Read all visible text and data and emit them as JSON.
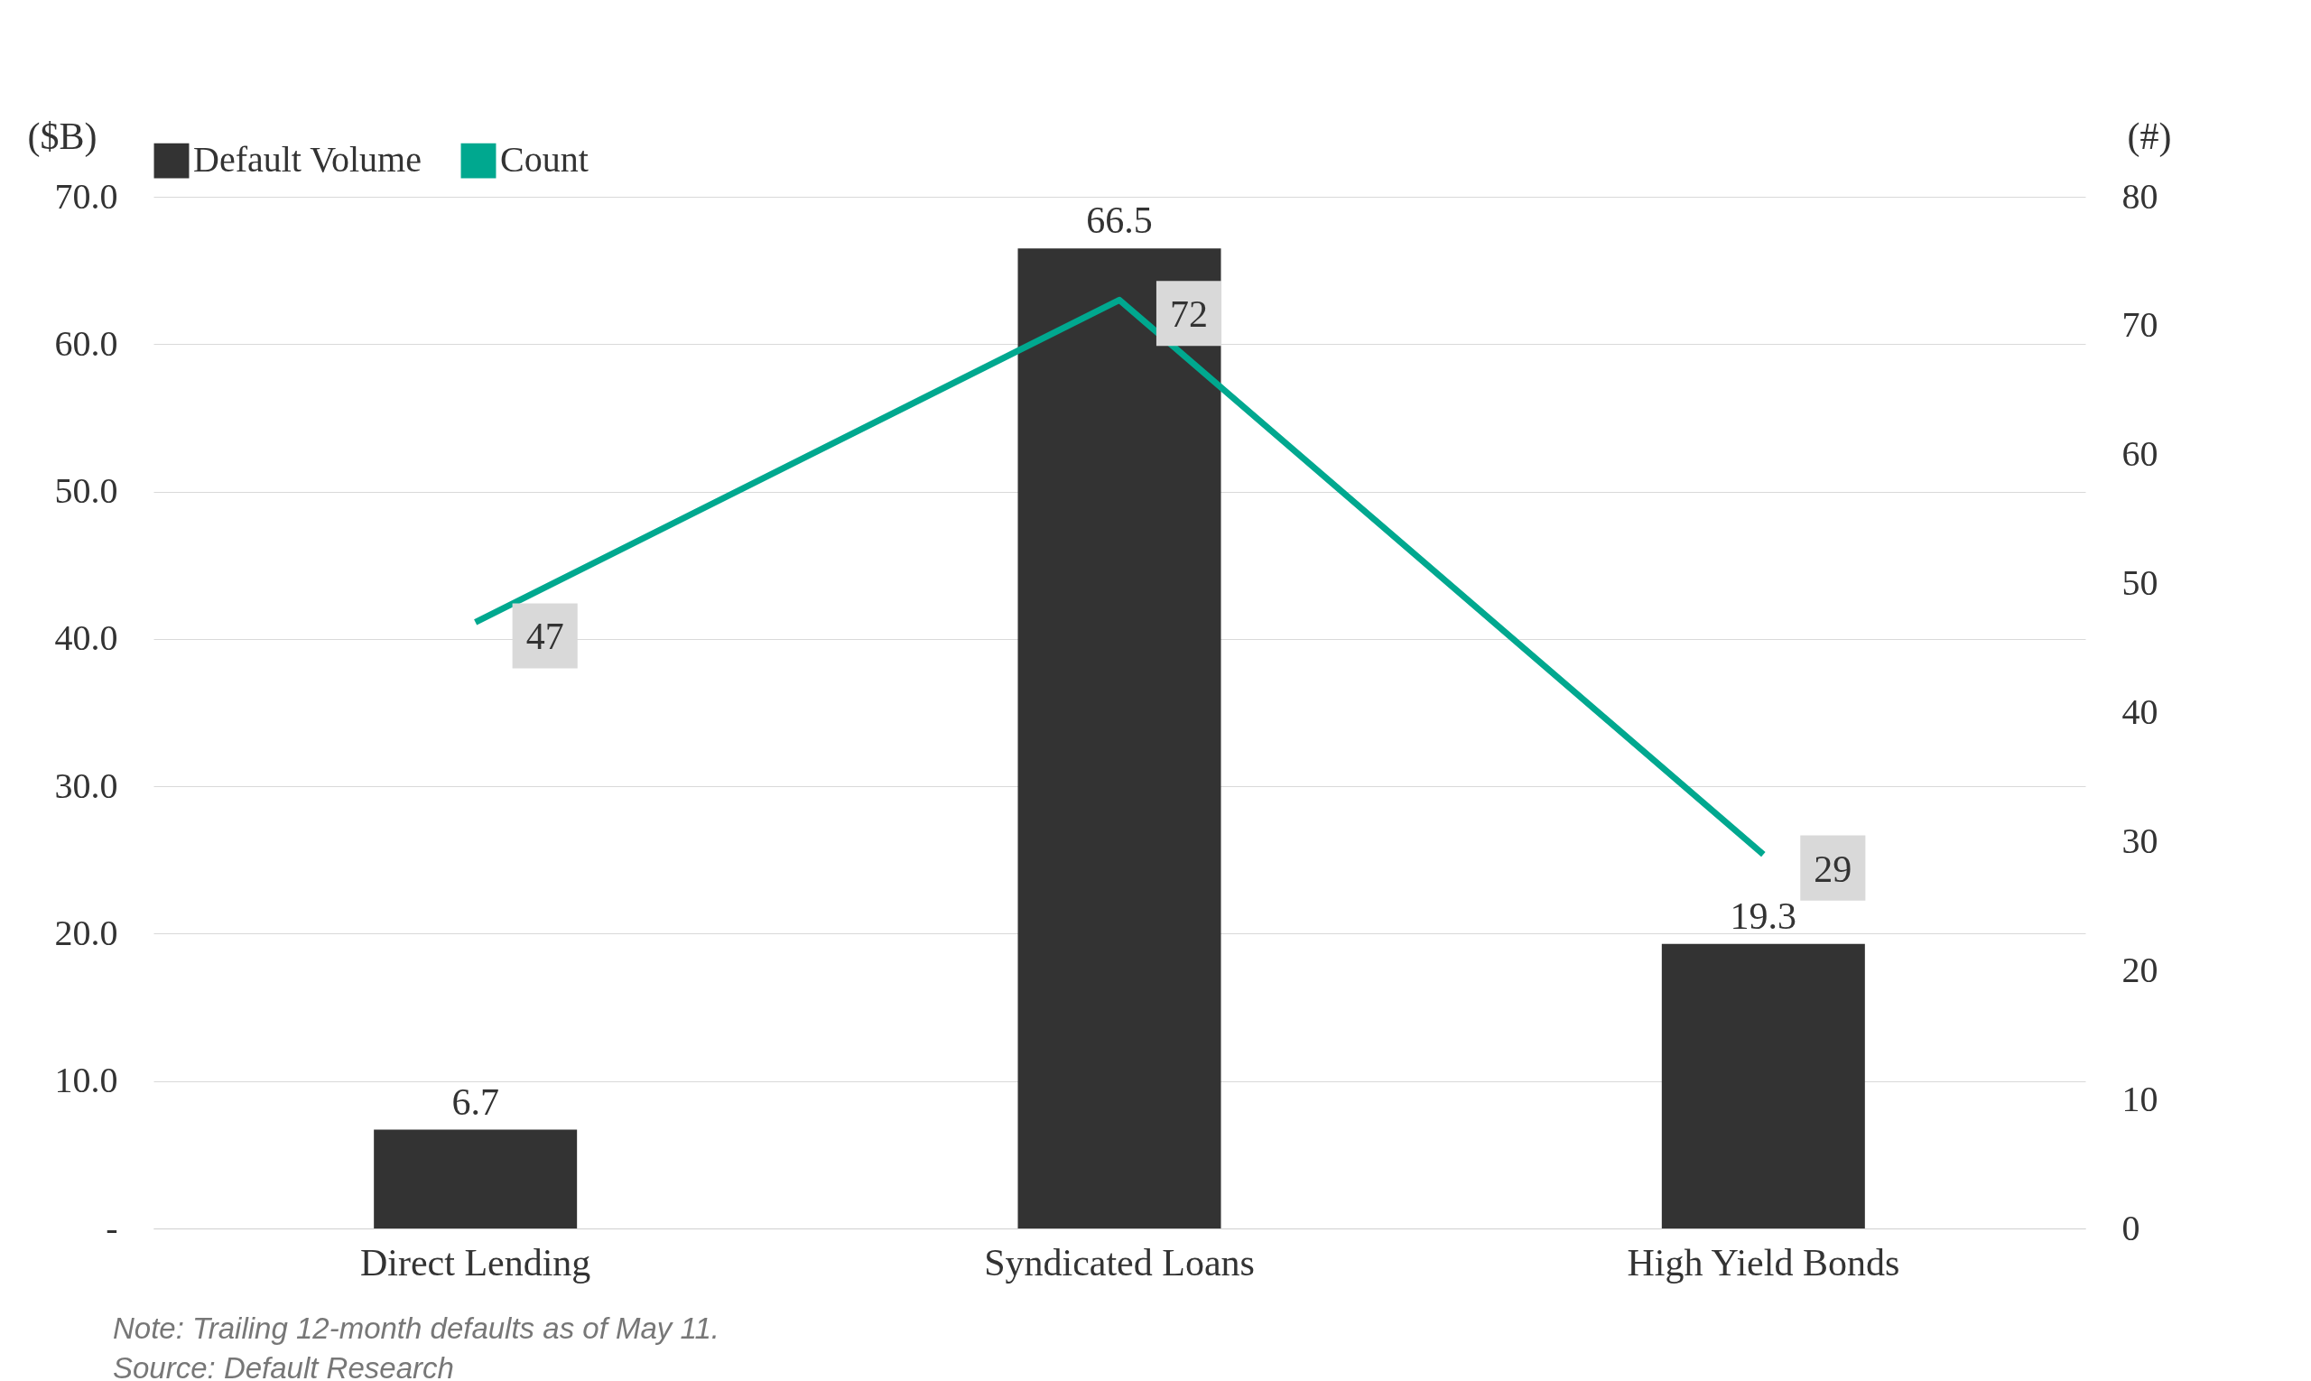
{
  "chart_data": {
    "type": "bar",
    "categories": [
      "Direct Lending",
      "Syndicated Loans",
      "High Yield Bonds"
    ],
    "series": [
      {
        "name": "Default Volume",
        "type": "bar",
        "color": "#333333",
        "values": [
          6.7,
          66.5,
          19.3
        ]
      },
      {
        "name": "Count",
        "type": "line",
        "axis": "y2",
        "color": "#00a88f",
        "values": [
          47,
          72,
          29
        ]
      }
    ],
    "ylabel": "($B)",
    "y2label": "(#)",
    "ylim": [
      0,
      70
    ],
    "yticks": [
      {
        "value": 0,
        "label": "-"
      },
      {
        "value": 10,
        "label": "10.0"
      },
      {
        "value": 20,
        "label": "20.0"
      },
      {
        "value": 30,
        "label": "30.0"
      },
      {
        "value": 40,
        "label": "40.0"
      },
      {
        "value": 50,
        "label": "50.0"
      },
      {
        "value": 60,
        "label": "60.0"
      },
      {
        "value": 70,
        "label": "70.0"
      }
    ],
    "y2lim": [
      0,
      80
    ],
    "y2ticks": [
      0,
      10,
      20,
      30,
      40,
      50,
      60,
      70,
      80
    ],
    "grid": "y",
    "legend": "top",
    "data_labels": true,
    "marker": "none",
    "annotations": [
      "Note: Trailing 12-month defaults as of May 11.",
      "Source: Default Research"
    ]
  }
}
